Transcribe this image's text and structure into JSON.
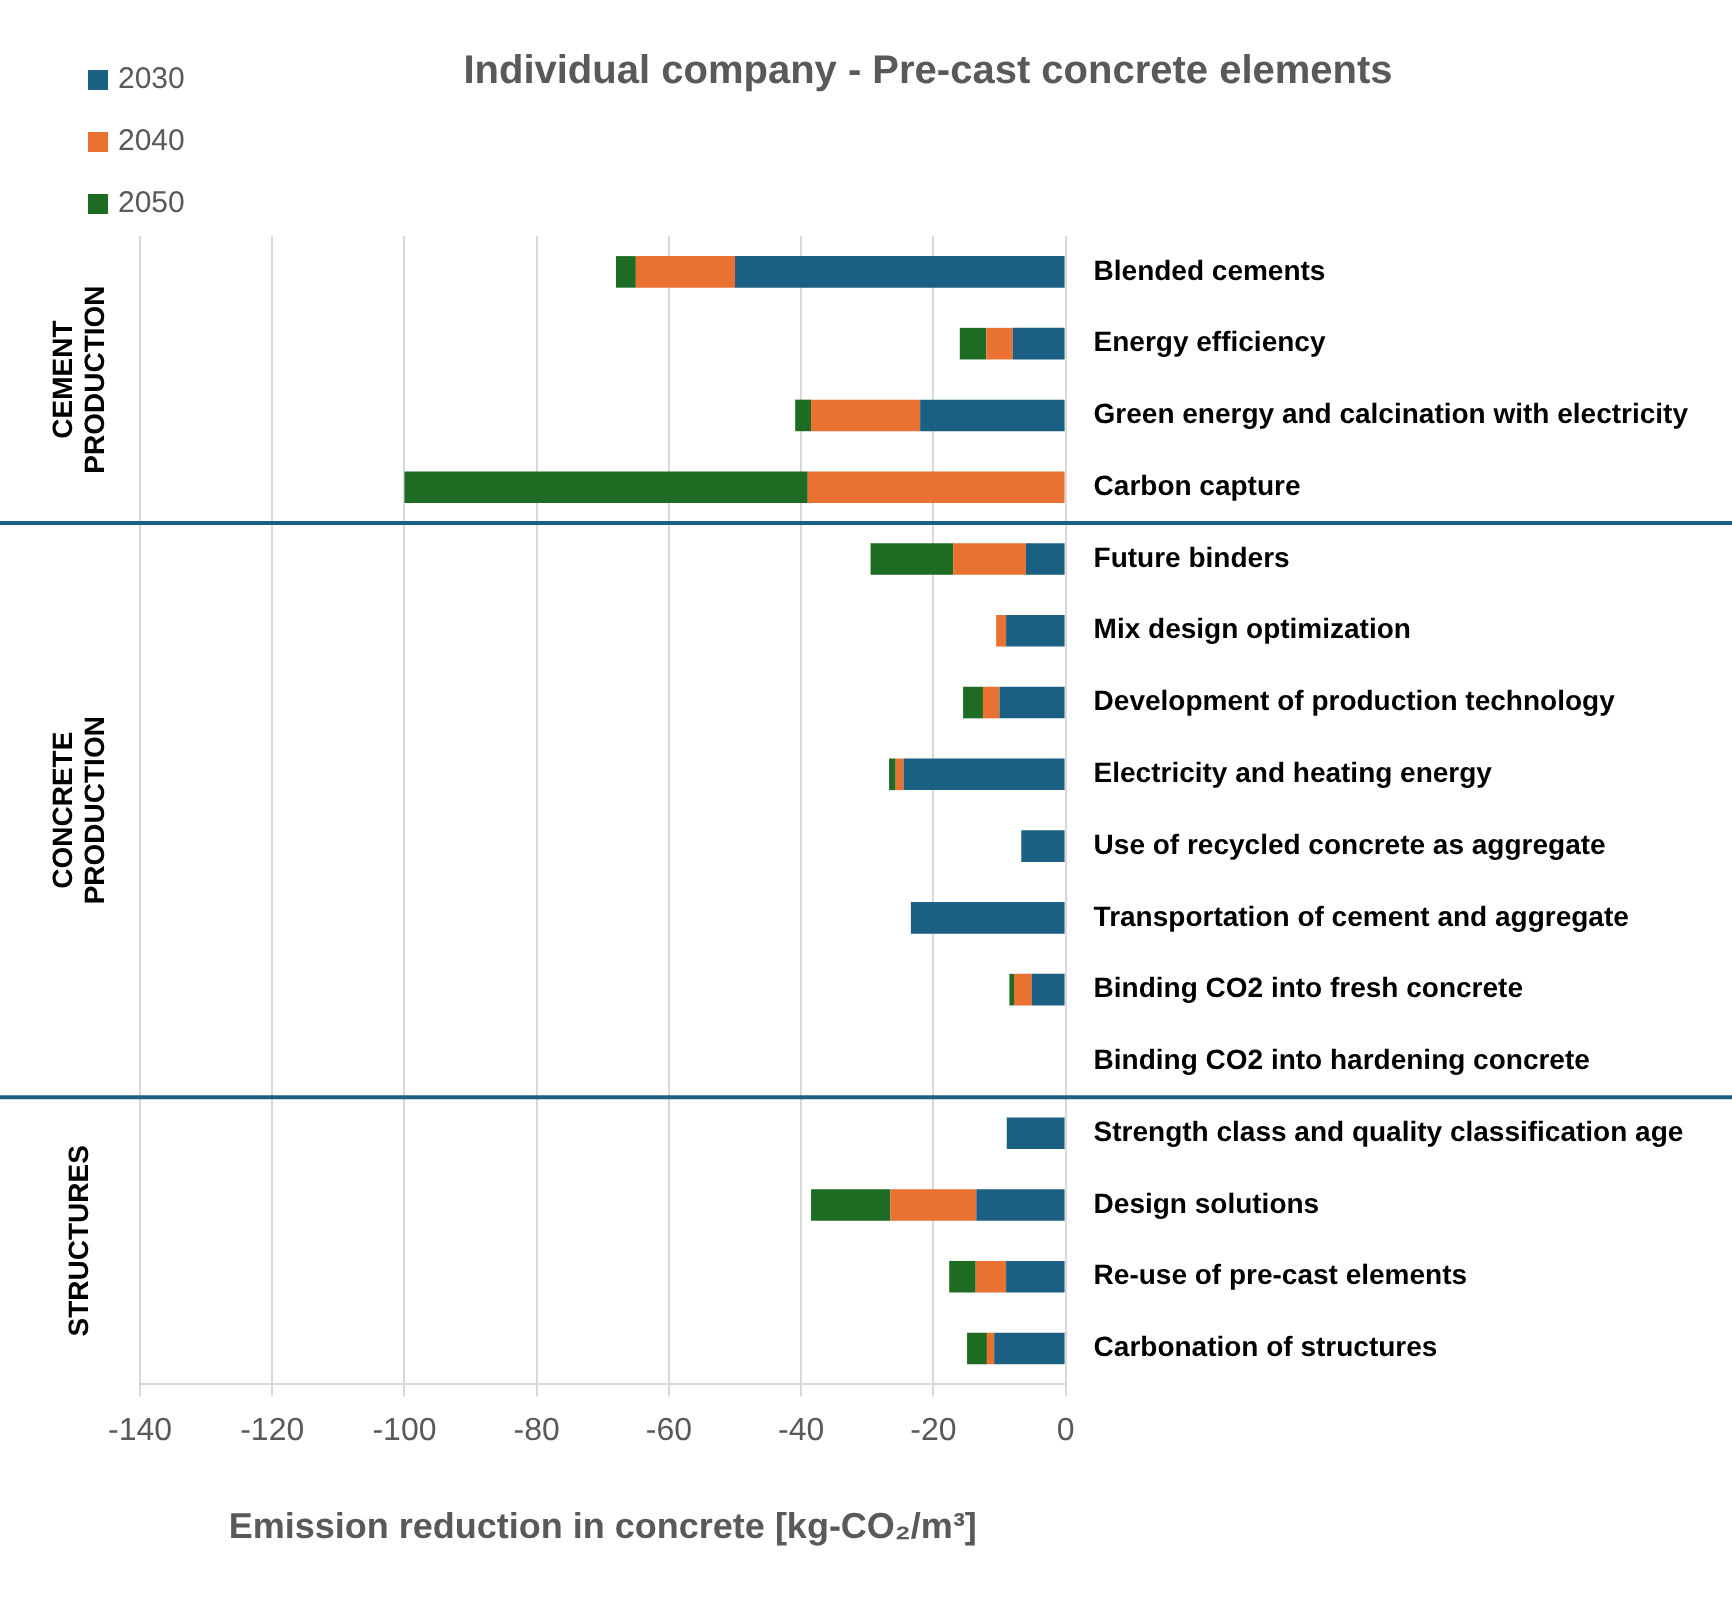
{
  "chart_data": {
    "type": "bar",
    "orientation": "horizontal",
    "stacked": true,
    "title": "Individual company - Pre-cast concrete elements",
    "xlabel": "Emission reduction in concrete [kg-CO₂/m³]",
    "categories": [
      "Blended cements",
      "Energy efficiency",
      "Green energy and calcination with electricity",
      "Carbon capture",
      "Future binders",
      "Mix design optimization",
      "Development of production technology",
      "Electricity and heating energy",
      "Use of recycled concrete as aggregate",
      "Transportation of cement and aggregate",
      "Binding CO2 into fresh concrete",
      "Binding CO2 into hardening concrete",
      "Strength class and quality classification age",
      "Design solutions",
      "Re-use of pre-cast elements",
      "Carbonation of structures"
    ],
    "series": [
      {
        "name": "2030",
        "color": "#1b5f82",
        "values": [
          -50,
          -8,
          -22,
          null,
          -6,
          -9,
          -10,
          -24.5,
          -6.7,
          -23.4,
          -5.1,
          null,
          -8.9,
          -13.5,
          -9,
          -10.8
        ]
      },
      {
        "name": "2040",
        "color": "#e97132",
        "values": [
          -15,
          -4,
          -16.5,
          -39,
          -11,
          -1.5,
          -2.5,
          -1.2,
          null,
          null,
          -2.7,
          null,
          null,
          -13,
          -4.6,
          -1.1
        ]
      },
      {
        "name": "2050",
        "color": "#1e6b24",
        "values": [
          -3,
          -4,
          -2.4,
          -61,
          -12.5,
          null,
          -3,
          -1,
          null,
          null,
          -0.7,
          null,
          null,
          -12,
          -4,
          -3
        ]
      }
    ],
    "xlim": [
      -140,
      0
    ],
    "xticks": [
      -140,
      -120,
      -100,
      -80,
      -60,
      -40,
      -20,
      0
    ],
    "grid": "x",
    "legend": "top left",
    "ref_lines": [
      {
        "axis": "y",
        "value": "Carbon capture",
        "color": "#1b5f82"
      },
      {
        "axis": "y",
        "value": "Binding CO2 into hardening concrete",
        "color": "#1b5f82"
      }
    ],
    "annotations": [
      "CEMENT PRODUCTION",
      "CONCRETE PRODUCTION",
      "STRUCTURES"
    ]
  }
}
